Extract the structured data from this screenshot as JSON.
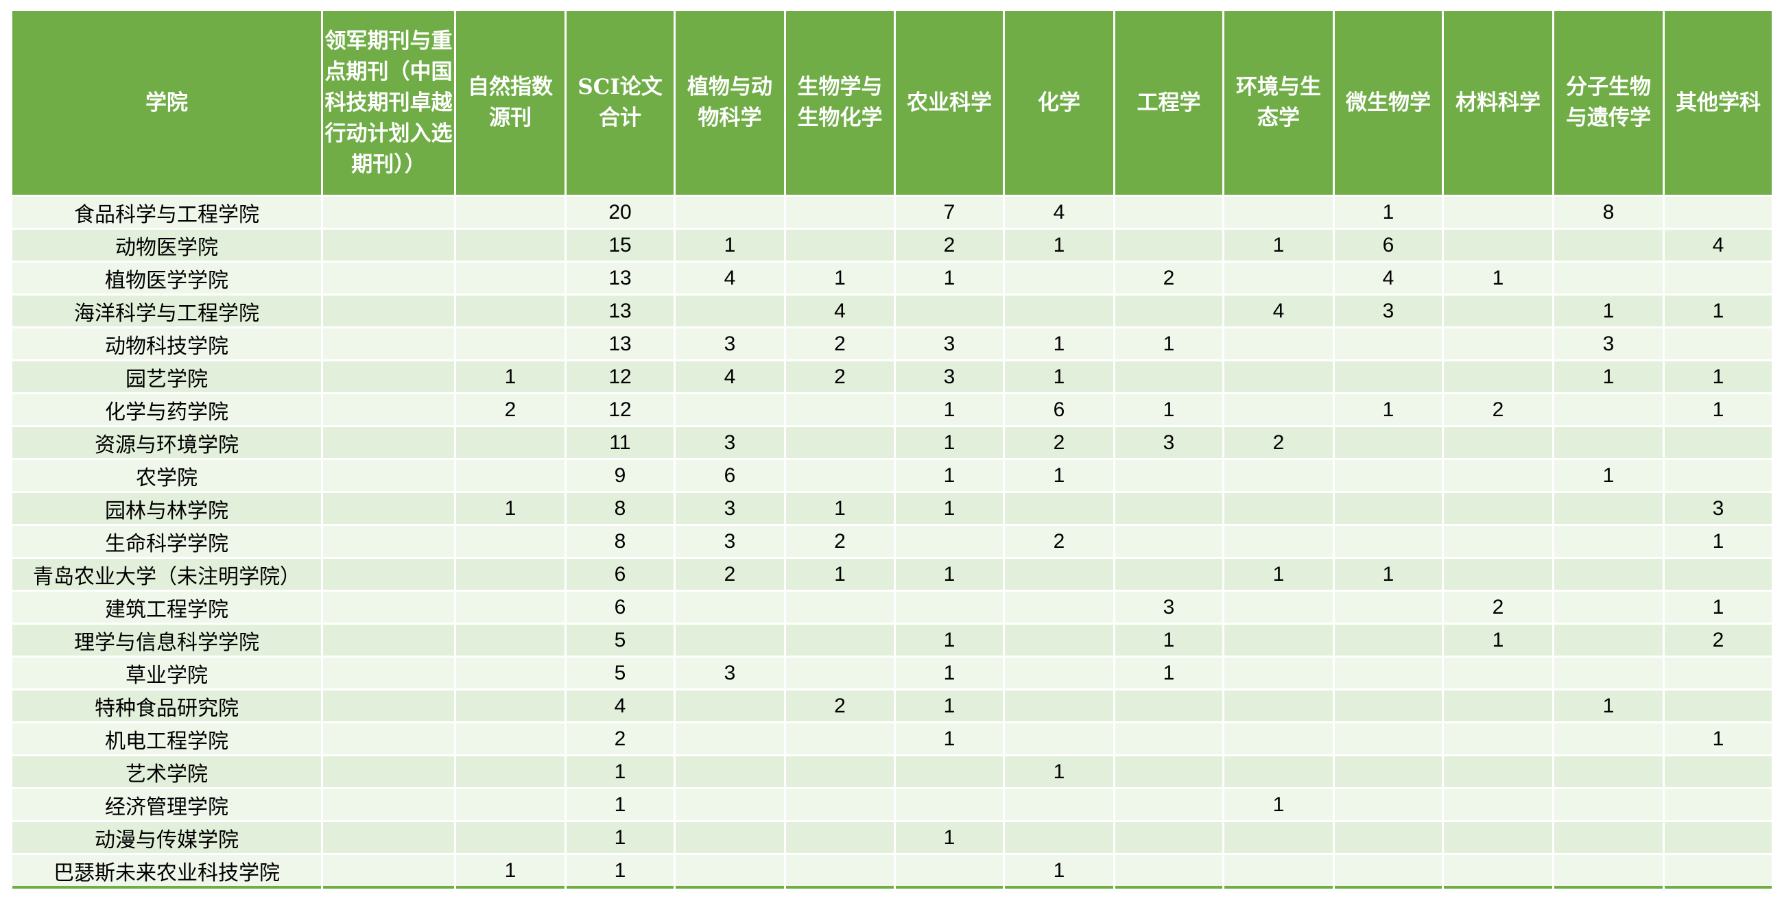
{
  "colors": {
    "header": "#70AD47",
    "row_light": "#EFF6EA",
    "row_dark": "#E2EFDA"
  },
  "headers": [
    "学院",
    "领军期刊与重点期刊（中国科技期刊卓越行动计划入选期刊））",
    "自然指数源刊",
    "SCI论文合计",
    "植物与动物科学",
    "生物学与生物化学",
    "农业科学",
    "化学",
    "工程学",
    "环境与生态学",
    "微生物学",
    "材料科学",
    "分子生物与遗传学",
    "其他学科"
  ],
  "rows": [
    [
      "食品科学与工程学院",
      "",
      "",
      "20",
      "",
      "",
      "7",
      "4",
      "",
      "",
      "1",
      "",
      "8",
      ""
    ],
    [
      "动物医学院",
      "",
      "",
      "15",
      "1",
      "",
      "2",
      "1",
      "",
      "1",
      "6",
      "",
      "",
      "4"
    ],
    [
      "植物医学学院",
      "",
      "",
      "13",
      "4",
      "1",
      "1",
      "",
      "2",
      "",
      "4",
      "1",
      "",
      ""
    ],
    [
      "海洋科学与工程学院",
      "",
      "",
      "13",
      "",
      "4",
      "",
      "",
      "",
      "4",
      "3",
      "",
      "1",
      "1"
    ],
    [
      "动物科技学院",
      "",
      "",
      "13",
      "3",
      "2",
      "3",
      "1",
      "1",
      "",
      "",
      "",
      "3",
      ""
    ],
    [
      "园艺学院",
      "",
      "1",
      "12",
      "4",
      "2",
      "3",
      "1",
      "",
      "",
      "",
      "",
      "1",
      "1"
    ],
    [
      "化学与药学院",
      "",
      "2",
      "12",
      "",
      "",
      "1",
      "6",
      "1",
      "",
      "1",
      "2",
      "",
      "1"
    ],
    [
      "资源与环境学院",
      "",
      "",
      "11",
      "3",
      "",
      "1",
      "2",
      "3",
      "2",
      "",
      "",
      "",
      ""
    ],
    [
      "农学院",
      "",
      "",
      "9",
      "6",
      "",
      "1",
      "1",
      "",
      "",
      "",
      "",
      "1",
      ""
    ],
    [
      "园林与林学院",
      "",
      "1",
      "8",
      "3",
      "1",
      "1",
      "",
      "",
      "",
      "",
      "",
      "",
      "3"
    ],
    [
      "生命科学学院",
      "",
      "",
      "8",
      "3",
      "2",
      "",
      "2",
      "",
      "",
      "",
      "",
      "",
      "1"
    ],
    [
      "青岛农业大学（未注明学院）",
      "",
      "",
      "6",
      "2",
      "1",
      "1",
      "",
      "",
      "1",
      "1",
      "",
      "",
      ""
    ],
    [
      "建筑工程学院",
      "",
      "",
      "6",
      "",
      "",
      "",
      "",
      "3",
      "",
      "",
      "2",
      "",
      "1"
    ],
    [
      "理学与信息科学学院",
      "",
      "",
      "5",
      "",
      "",
      "1",
      "",
      "1",
      "",
      "",
      "1",
      "",
      "2"
    ],
    [
      "草业学院",
      "",
      "",
      "5",
      "3",
      "",
      "1",
      "",
      "1",
      "",
      "",
      "",
      "",
      ""
    ],
    [
      "特种食品研究院",
      "",
      "",
      "4",
      "",
      "2",
      "1",
      "",
      "",
      "",
      "",
      "",
      "1",
      ""
    ],
    [
      "机电工程学院",
      "",
      "",
      "2",
      "",
      "",
      "1",
      "",
      "",
      "",
      "",
      "",
      "",
      "1"
    ],
    [
      "艺术学院",
      "",
      "",
      "1",
      "",
      "",
      "",
      "1",
      "",
      "",
      "",
      "",
      "",
      ""
    ],
    [
      "经济管理学院",
      "",
      "",
      "1",
      "",
      "",
      "",
      "",
      "",
      "1",
      "",
      "",
      "",
      ""
    ],
    [
      "动漫与传媒学院",
      "",
      "",
      "1",
      "",
      "",
      "1",
      "",
      "",
      "",
      "",
      "",
      "",
      ""
    ],
    [
      "巴瑟斯未来农业科技学院",
      "",
      "1",
      "1",
      "",
      "",
      "",
      "1",
      "",
      "",
      "",
      "",
      "",
      ""
    ]
  ]
}
